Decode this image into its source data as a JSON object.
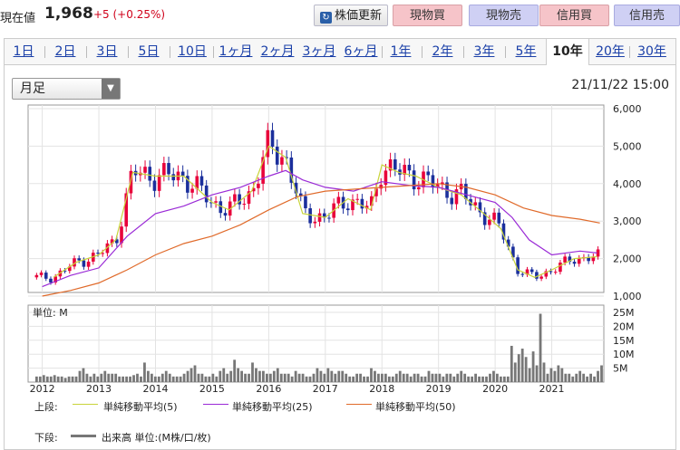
{
  "header": {
    "price_label": "現在値",
    "price_value": "1,968",
    "price_change": "+5 (+0.25%)",
    "update_button": "株価更新",
    "buttons": [
      "現物買",
      "現物売",
      "信用買",
      "信用売"
    ]
  },
  "periods": [
    "1日",
    "2日",
    "3日",
    "5日",
    "10日",
    "1ヶ月",
    "2ヶ月",
    "3ヶ月",
    "6ヶ月",
    "1年",
    "2年",
    "3年",
    "5年",
    "10年",
    "20年",
    "30年"
  ],
  "active_period": "10年",
  "chart_type_select": "月足",
  "datetime": "21/11/22 15:00",
  "colors": {
    "up": "#e8003a",
    "down": "#1b2f9c",
    "ma5": "#c8d43a",
    "ma25": "#9a2ad6",
    "ma50": "#e06a2a",
    "volume": "#777777"
  },
  "chart_data": [
    {
      "type": "candlestick",
      "ylim": [
        1000,
        6000
      ],
      "y_ticks": [
        "1,000",
        "2,000",
        "3,000",
        "4,000",
        "5,000",
        "6,000"
      ],
      "x_ticks": [
        "2012",
        "2013",
        "2014",
        "2015",
        "2016",
        "2017",
        "2018",
        "2019",
        "2020",
        "2021"
      ],
      "x_range": [
        2011.75,
        2021.92
      ],
      "series": [
        {
          "name": "単純移動平均(5)",
          "x": [
            2012.2,
            2012.6,
            2013.0,
            2013.3,
            2013.6,
            2014.0,
            2014.5,
            2015.0,
            2015.3,
            2015.7,
            2016.0,
            2016.3,
            2016.6,
            2017.0,
            2017.4,
            2017.8,
            2018.0,
            2018.3,
            2018.6,
            2019.0,
            2019.4,
            2019.8,
            2020.1,
            2020.4,
            2020.7,
            2021.0,
            2021.4,
            2021.8
          ],
          "values": [
            1500,
            1900,
            2100,
            2500,
            4300,
            4200,
            4200,
            3500,
            3300,
            3800,
            5000,
            4700,
            3200,
            3100,
            3600,
            3300,
            4500,
            4300,
            4200,
            3900,
            3700,
            3200,
            2800,
            1700,
            1500,
            1700,
            2000,
            2050
          ]
        },
        {
          "name": "単純移動平均(25)",
          "x": [
            2012.0,
            2012.5,
            2013.0,
            2013.5,
            2014.0,
            2014.5,
            2015.0,
            2015.5,
            2016.0,
            2016.3,
            2016.6,
            2017.0,
            2017.5,
            2018.0,
            2018.5,
            2019.0,
            2019.5,
            2020.0,
            2020.3,
            2020.6,
            2021.0,
            2021.5,
            2021.8
          ],
          "values": [
            1250,
            1550,
            1750,
            2600,
            3200,
            3400,
            3700,
            3900,
            4200,
            4350,
            4100,
            3900,
            3800,
            4050,
            3950,
            3900,
            3700,
            3500,
            3100,
            2500,
            2100,
            2200,
            2150
          ]
        },
        {
          "name": "単純移動平均(50)",
          "x": [
            2012.0,
            2012.5,
            2013.0,
            2013.5,
            2014.0,
            2014.5,
            2015.0,
            2015.5,
            2016.0,
            2016.5,
            2017.0,
            2017.5,
            2018.0,
            2018.5,
            2019.0,
            2019.5,
            2020.0,
            2020.5,
            2021.0,
            2021.5,
            2021.85
          ],
          "values": [
            1000,
            1150,
            1350,
            1700,
            2100,
            2400,
            2600,
            2900,
            3300,
            3650,
            3800,
            3850,
            3900,
            3950,
            4000,
            3900,
            3700,
            3350,
            3150,
            3050,
            2950
          ]
        }
      ]
    },
    {
      "type": "bar",
      "title": "単位: M",
      "ylim": [
        0,
        25
      ],
      "y_ticks": [
        "5M",
        "10M",
        "15M",
        "20M",
        "25M"
      ],
      "series": [
        {
          "name": "出来高",
          "values": [
            2,
            2,
            2.5,
            2,
            2,
            2.5,
            2,
            2,
            1.5,
            2,
            2,
            2,
            4,
            5,
            3,
            2,
            3,
            2,
            3,
            4,
            3,
            3,
            3,
            2,
            2,
            2,
            2,
            2.5,
            3,
            2,
            7,
            4,
            3,
            2,
            2,
            3,
            4,
            3,
            2,
            2,
            2,
            3,
            4,
            5,
            6,
            3,
            3,
            2,
            2,
            3,
            2,
            4,
            5,
            3,
            4,
            8,
            5,
            4,
            3,
            3,
            7,
            5,
            4,
            4,
            3,
            3,
            4,
            5,
            3,
            3,
            3,
            2,
            4,
            3,
            3,
            2,
            2,
            3,
            5,
            4,
            3,
            5,
            4,
            3,
            4,
            4,
            3,
            2,
            2,
            3,
            3,
            2,
            2,
            5,
            4,
            3,
            3,
            3,
            2,
            2,
            3,
            4,
            3,
            3,
            2,
            3,
            3,
            2,
            2,
            4,
            3,
            3,
            3,
            2,
            3,
            3,
            2,
            3,
            4,
            3,
            2,
            2,
            3,
            2,
            2,
            2,
            3,
            4,
            3,
            2,
            2,
            2,
            13,
            7,
            10,
            12,
            9,
            5,
            11,
            6,
            24.5,
            7,
            3,
            5,
            4,
            6,
            5,
            3,
            3,
            2,
            3,
            4,
            3,
            2,
            3,
            2,
            4,
            6
          ]
        }
      ]
    }
  ],
  "legend": {
    "upper_label": "上段:",
    "lower_label": "下段:",
    "ma5": "単純移動平均(5)",
    "ma25": "単純移動平均(25)",
    "ma50": "単純移動平均(50)",
    "volume": "出来高 単位:(M株/口/枚)"
  }
}
